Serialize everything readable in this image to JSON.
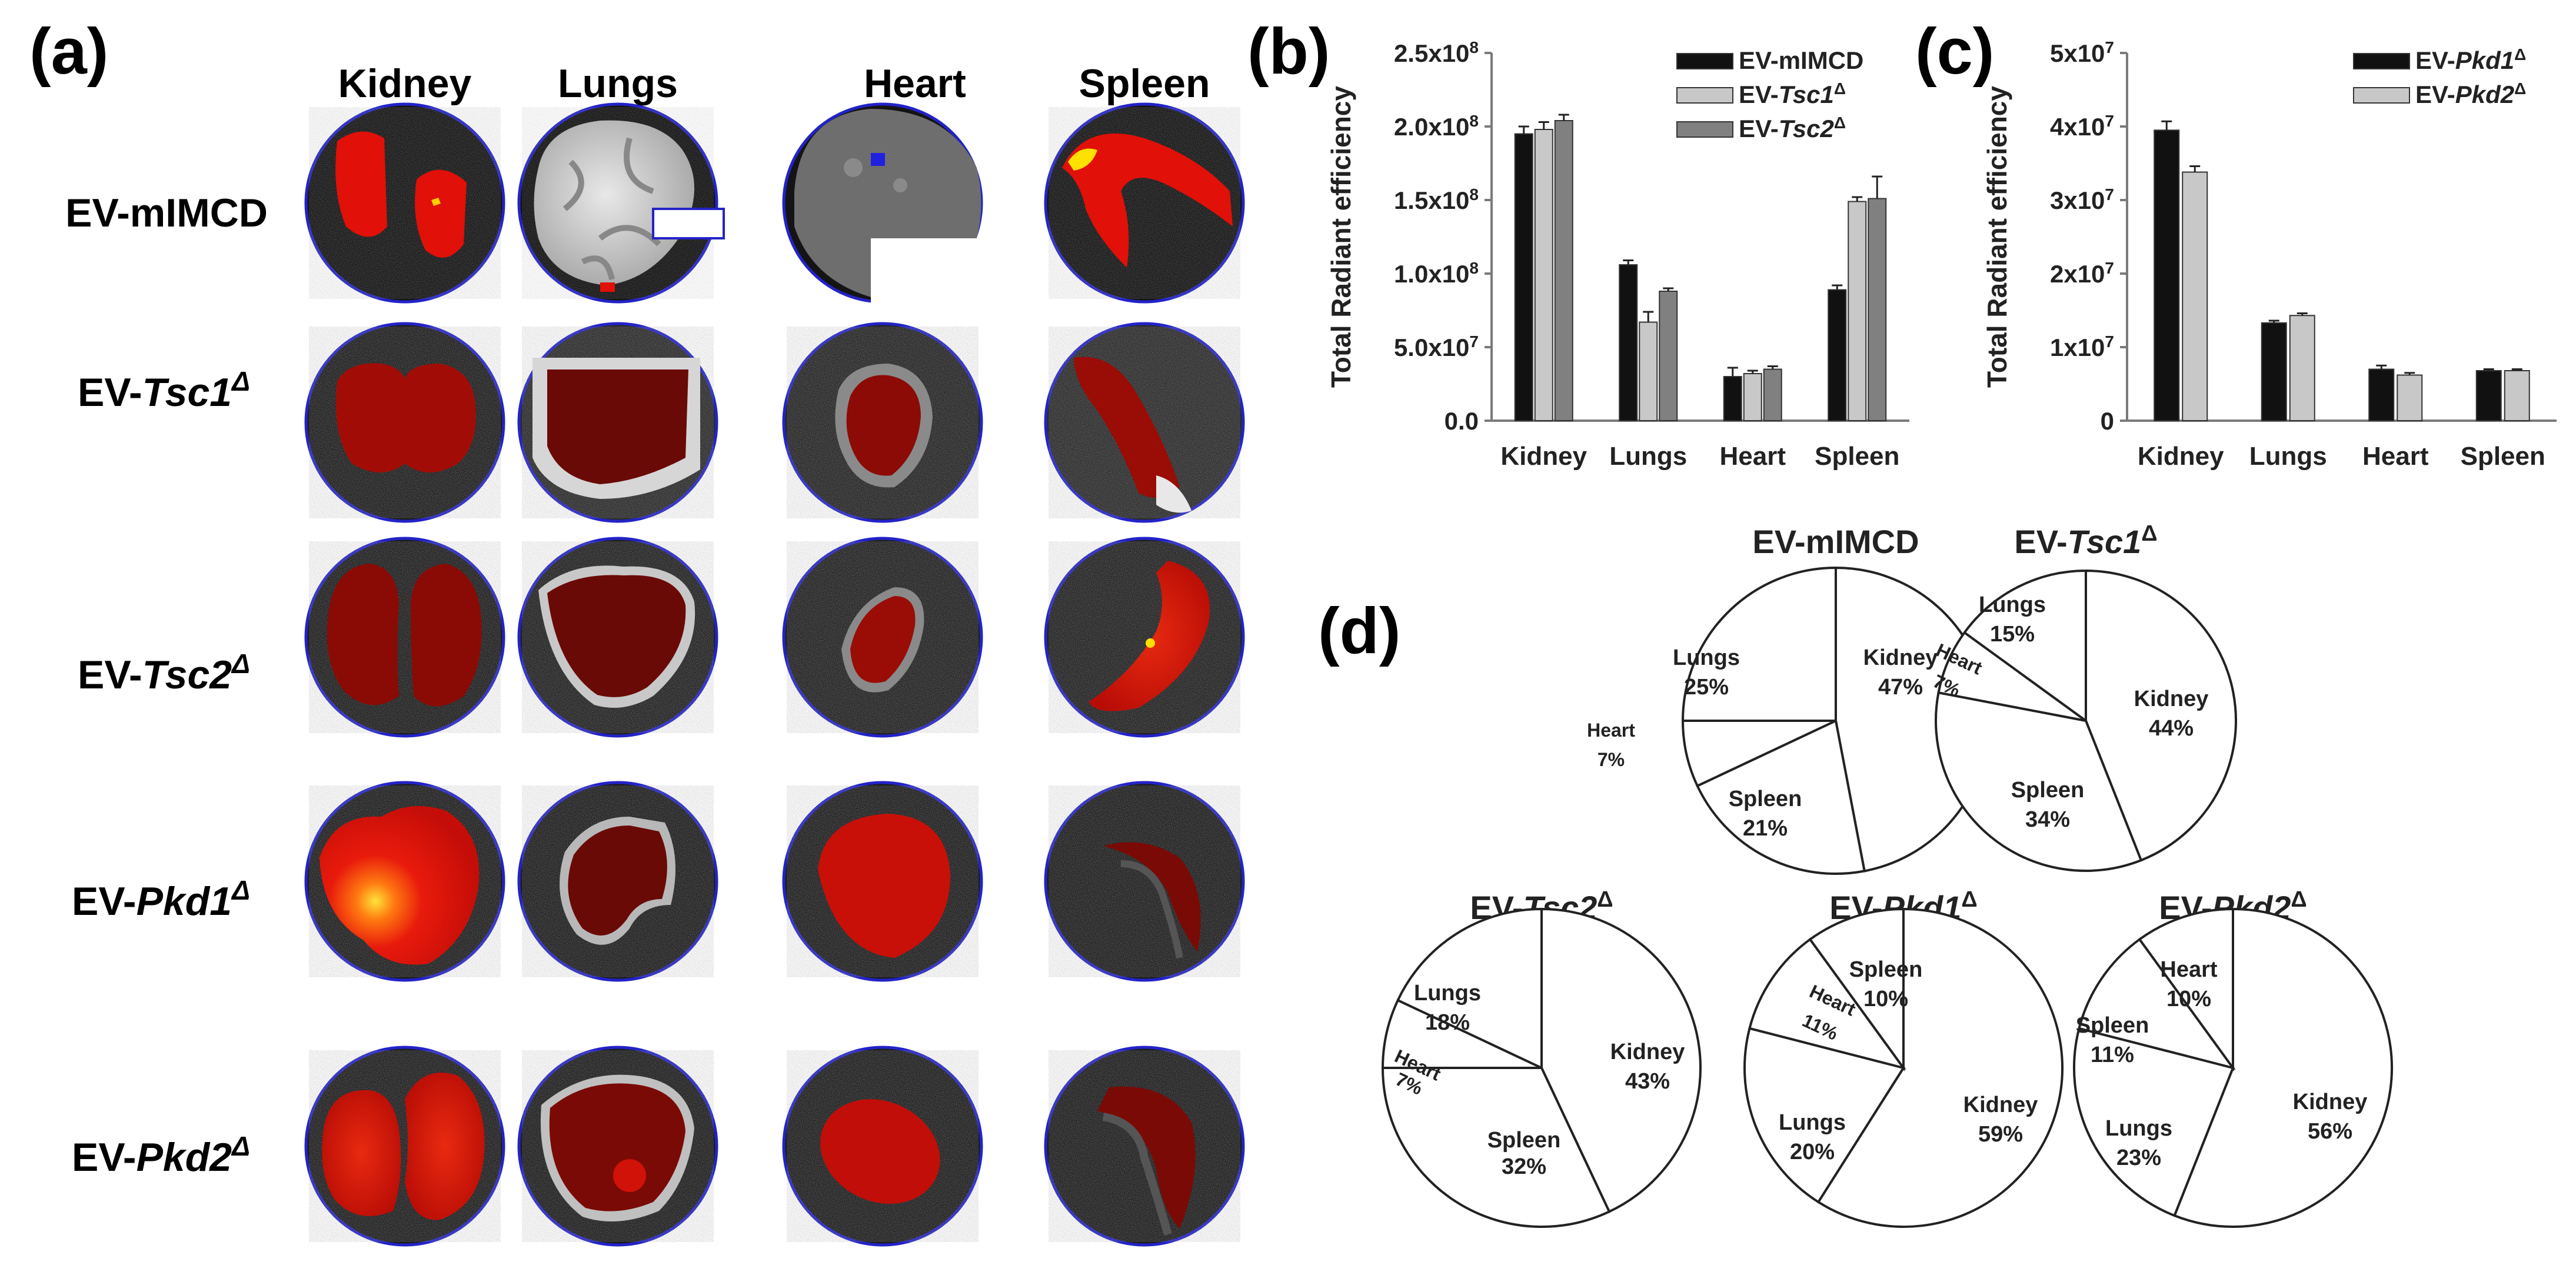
{
  "panel_a": {
    "label": "(a)",
    "columns": [
      "Kidney",
      "Lungs",
      "Heart",
      "Spleen"
    ],
    "rows": [
      {
        "prefix": "EV-mIMCD",
        "gene": "",
        "sup": ""
      },
      {
        "prefix": "EV-",
        "gene": "Tsc1",
        "sup": "Δ"
      },
      {
        "prefix": "EV-",
        "gene": "Tsc2",
        "sup": "Δ"
      },
      {
        "prefix": "EV-",
        "gene": "Pkd1",
        "sup": "Δ"
      },
      {
        "prefix": "EV-",
        "gene": "Pkd2",
        "sup": "Δ"
      }
    ]
  },
  "panel_b": {
    "label": "(b)"
  },
  "panel_c": {
    "label": "(c)"
  },
  "panel_d": {
    "label": "(d)"
  },
  "colors": {
    "black": "#111111",
    "light": "#c8c8c8",
    "dark_grey": "#808080",
    "signal": "#e01010",
    "tissue_dark": "#7a0a05"
  },
  "chart_data": [
    {
      "id": "b",
      "type": "bar",
      "ylabel": "Total Radiant efficiency",
      "categories": [
        "Kidney",
        "Lungs",
        "Heart",
        "Spleen"
      ],
      "ylim": [
        0,
        250000000
      ],
      "ticks": [
        {
          "value": 0,
          "base": "0.0",
          "exp": ""
        },
        {
          "value": 50000000,
          "base": "5.0x10",
          "exp": "7"
        },
        {
          "value": 100000000,
          "base": "1.0x10",
          "exp": "8"
        },
        {
          "value": 150000000,
          "base": "1.5x10",
          "exp": "8"
        },
        {
          "value": 200000000,
          "base": "2.0x10",
          "exp": "8"
        },
        {
          "value": 250000000,
          "base": "2.5x10",
          "exp": "8"
        }
      ],
      "series": [
        {
          "name": "EV-mIMCD",
          "prefix": "EV-mIMCD",
          "gene": "",
          "sup": "",
          "color": "#111111",
          "values": [
            195000000,
            106000000,
            30000000,
            89000000
          ],
          "errors": [
            5000000,
            3000000,
            6000000,
            3000000
          ]
        },
        {
          "name": "EV-Tsc1Δ",
          "prefix": "EV-",
          "gene": "Tsc1",
          "sup": "Δ",
          "color": "#c8c8c8",
          "values": [
            198000000,
            67000000,
            32000000,
            149000000
          ],
          "errors": [
            5000000,
            7000000,
            2000000,
            3000000
          ]
        },
        {
          "name": "EV-Tsc2Δ",
          "prefix": "EV-",
          "gene": "Tsc2",
          "sup": "Δ",
          "color": "#808080",
          "values": [
            204000000,
            88000000,
            35000000,
            151000000
          ],
          "errors": [
            4000000,
            2000000,
            2000000,
            15000000
          ]
        }
      ],
      "legend": "top-right"
    },
    {
      "id": "c",
      "type": "bar",
      "ylabel": "Total Radiant efficiency",
      "categories": [
        "Kidney",
        "Lungs",
        "Heart",
        "Spleen"
      ],
      "ylim": [
        0,
        50000000
      ],
      "ticks": [
        {
          "value": 0,
          "base": "0",
          "exp": ""
        },
        {
          "value": 10000000,
          "base": "1x10",
          "exp": "7"
        },
        {
          "value": 20000000,
          "base": "2x10",
          "exp": "7"
        },
        {
          "value": 30000000,
          "base": "3x10",
          "exp": "7"
        },
        {
          "value": 40000000,
          "base": "4x10",
          "exp": "7"
        },
        {
          "value": 50000000,
          "base": "5x10",
          "exp": "7"
        }
      ],
      "series": [
        {
          "name": "EV-Pkd1Δ",
          "prefix": "EV-",
          "gene": "Pkd1",
          "sup": "Δ",
          "color": "#111111",
          "values": [
            39500000,
            13300000,
            7000000,
            6800000
          ],
          "errors": [
            1200000,
            300000,
            500000,
            200000
          ]
        },
        {
          "name": "EV-Pkd2Δ",
          "prefix": "EV-",
          "gene": "Pkd2",
          "sup": "Δ",
          "color": "#c8c8c8",
          "values": [
            33800000,
            14300000,
            6200000,
            6800000
          ],
          "errors": [
            800000,
            300000,
            300000,
            200000
          ]
        }
      ],
      "legend": "top-right"
    },
    {
      "id": "d1",
      "type": "pie",
      "title": {
        "prefix": "EV-mIMCD",
        "gene": "",
        "sup": ""
      },
      "slices": [
        {
          "label": "Kidney",
          "pct": "47%",
          "value": 47
        },
        {
          "label": "Spleen",
          "pct": "21%",
          "value": 21
        },
        {
          "label": "Heart",
          "pct": "7%",
          "value": 7
        },
        {
          "label": "Lungs",
          "pct": "25%",
          "value": 25
        }
      ]
    },
    {
      "id": "d2",
      "type": "pie",
      "title": {
        "prefix": "EV-",
        "gene": "Tsc1",
        "sup": "Δ"
      },
      "slices": [
        {
          "label": "Kidney",
          "pct": "44%",
          "value": 44
        },
        {
          "label": "Spleen",
          "pct": "34%",
          "value": 34
        },
        {
          "label": "Heart",
          "pct": "7%",
          "value": 7
        },
        {
          "label": "Lungs",
          "pct": "15%",
          "value": 15
        }
      ]
    },
    {
      "id": "d3",
      "type": "pie",
      "title": {
        "prefix": "EV-",
        "gene": "Tsc2",
        "sup": "Δ"
      },
      "slices": [
        {
          "label": "Kidney",
          "pct": "43%",
          "value": 43
        },
        {
          "label": "Spleen",
          "pct": "32%",
          "value": 32
        },
        {
          "label": "Heart",
          "pct": "7%",
          "value": 7
        },
        {
          "label": "Lungs",
          "pct": "18%",
          "value": 18
        }
      ]
    },
    {
      "id": "d4",
      "type": "pie",
      "title": {
        "prefix": "EV-",
        "gene": "Pkd1",
        "sup": "Δ"
      },
      "slices": [
        {
          "label": "Kidney",
          "pct": "59%",
          "value": 59
        },
        {
          "label": "Lungs",
          "pct": "20%",
          "value": 20
        },
        {
          "label": "Heart",
          "pct": "11%",
          "value": 11
        },
        {
          "label": "Spleen",
          "pct": "10%",
          "value": 10
        }
      ]
    },
    {
      "id": "d5",
      "type": "pie",
      "title": {
        "prefix": "EV-",
        "gene": "Pkd2",
        "sup": "Δ"
      },
      "slices": [
        {
          "label": "Kidney",
          "pct": "56%",
          "value": 56
        },
        {
          "label": "Lungs",
          "pct": "23%",
          "value": 23
        },
        {
          "label": "Spleen",
          "pct": "11%",
          "value": 11
        },
        {
          "label": "Heart",
          "pct": "10%",
          "value": 10
        }
      ]
    }
  ]
}
